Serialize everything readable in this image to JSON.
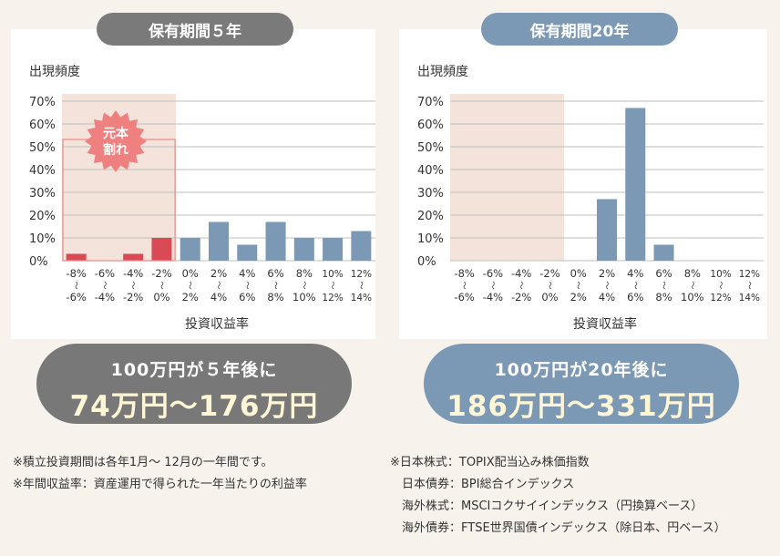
{
  "titles": {
    "left": "保有期間５年",
    "right": "保有期間20年"
  },
  "results": {
    "left": {
      "line1": "100万円が５年後に",
      "line2": "74万円〜176万円"
    },
    "right": {
      "line1": "100万円が20年後に",
      "line2": "186万円〜331万円"
    }
  },
  "loss_badge": "元本割れ",
  "notes_left": [
    "※積立投資期間は各年1月〜 12月の一年間です。",
    "※年間収益率：資産運用で得られた一年当たりの利益率"
  ],
  "notes_right": [
    "※日本株式：TOPIX配当込み株価指数",
    "　日本債券：BPI総合インデックス",
    "　海外株式：MSCIコクサイインデックス（円換算ベース）",
    "　海外債券：FTSE世界国債インデックス（除日本、円ベース）"
  ],
  "colors": {
    "loss": "#d94a55",
    "gain": "#7b98b5",
    "loss_zone": "#f3e3da",
    "grid": "#bfbfbf"
  },
  "chart_data": [
    {
      "type": "bar",
      "ylabel": "出現頻度",
      "xlabel": "投資収益率",
      "yticks": [
        "0%",
        "10%",
        "20%",
        "30%",
        "40%",
        "50%",
        "60%",
        "70%"
      ],
      "ylim": [
        0,
        70
      ],
      "grid": true,
      "categories": [
        [
          "-8%",
          "〜",
          "-6%"
        ],
        [
          "-6%",
          "〜",
          "-4%"
        ],
        [
          "-4%",
          "〜",
          "-2%"
        ],
        [
          "-2%",
          "〜",
          "0%"
        ],
        [
          "0%",
          "〜",
          "2%"
        ],
        [
          "2%",
          "〜",
          "4%"
        ],
        [
          "4%",
          "〜",
          "6%"
        ],
        [
          "6%",
          "〜",
          "8%"
        ],
        [
          "8%",
          "〜",
          "10%"
        ],
        [
          "10%",
          "〜",
          "12%"
        ],
        [
          "12%",
          "〜",
          "14%"
        ]
      ],
      "values": [
        3,
        0,
        3,
        10,
        10,
        17,
        7,
        17,
        10,
        10,
        13
      ],
      "loss_count": 4
    },
    {
      "type": "bar",
      "ylabel": "出現頻度",
      "xlabel": "投資収益率",
      "yticks": [
        "0%",
        "10%",
        "20%",
        "30%",
        "40%",
        "50%",
        "60%",
        "70%"
      ],
      "ylim": [
        0,
        70
      ],
      "grid": true,
      "categories": [
        [
          "-8%",
          "〜",
          "-6%"
        ],
        [
          "-6%",
          "〜",
          "-4%"
        ],
        [
          "-4%",
          "〜",
          "-2%"
        ],
        [
          "-2%",
          "〜",
          "0%"
        ],
        [
          "0%",
          "〜",
          "2%"
        ],
        [
          "2%",
          "〜",
          "4%"
        ],
        [
          "4%",
          "〜",
          "6%"
        ],
        [
          "6%",
          "〜",
          "8%"
        ],
        [
          "8%",
          "〜",
          "10%"
        ],
        [
          "10%",
          "〜",
          "12%"
        ],
        [
          "12%",
          "〜",
          "14%"
        ]
      ],
      "values": [
        0,
        0,
        0,
        0,
        0,
        27,
        67,
        7,
        0,
        0,
        0
      ],
      "loss_count": 4
    }
  ]
}
